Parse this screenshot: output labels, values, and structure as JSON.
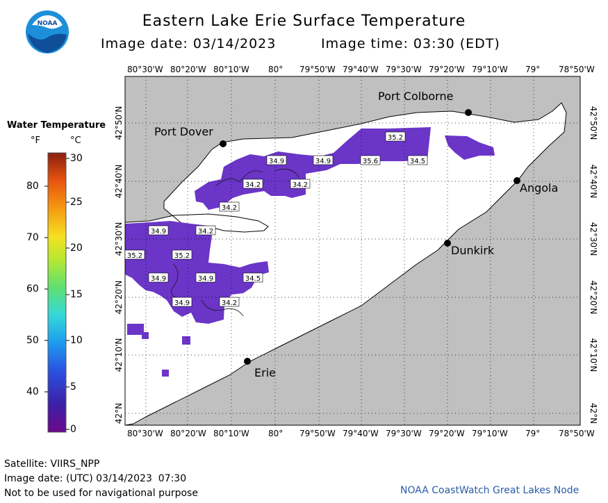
{
  "title": "Eastern Lake Erie Surface Temperature",
  "image_date": "Image date: 03/14/2023",
  "image_time": "Image time: 03:30 (EDT)",
  "logo_text": "NOAA",
  "legend": {
    "title": "Water Temperature",
    "unit_f": "°F",
    "unit_c": "°C",
    "fahrenheit_ticks": [
      "80",
      "70",
      "60",
      "50",
      "40"
    ],
    "celsius_ticks": [
      "30",
      "25",
      "20",
      "15",
      "10",
      "5",
      "0"
    ]
  },
  "longitude_labels": [
    "80°30'W",
    "80°20'W",
    "80°10'W",
    "80°",
    "79°50'W",
    "79°40'W",
    "79°30'W",
    "79°20'W",
    "79°10'W",
    "79°",
    "78°50'W"
  ],
  "latitude_labels": [
    "42°50'N",
    "42°40'N",
    "42°30'N",
    "42°20'N",
    "42°10'N",
    "42°N"
  ],
  "places": [
    "Port Colborne",
    "Port Dover",
    "Angola",
    "Dunkirk",
    "Erie"
  ],
  "contour_labels": [
    "35.2",
    "34.9",
    "34.9",
    "35.6",
    "34.5",
    "34.2",
    "34.2",
    "34.2",
    "34.9",
    "34.2",
    "35.2",
    "35.2",
    "34.9",
    "34.9",
    "34.5",
    "34.9",
    "34.2"
  ],
  "footer": {
    "satellite": "Satellite: VIIRS_NPP",
    "utc_date": "Image date: (UTC) 03/14/2023  07:30",
    "disclaimer": "Not to be used for navigational purpose",
    "credit": "NOAA CoastWatch Great Lakes Node"
  },
  "colors": {
    "land": "#c0c0c0",
    "water": "#ffffff",
    "cold_water": "#6a2fc0",
    "grid": "#000000",
    "credit": "#2b5ca8"
  }
}
